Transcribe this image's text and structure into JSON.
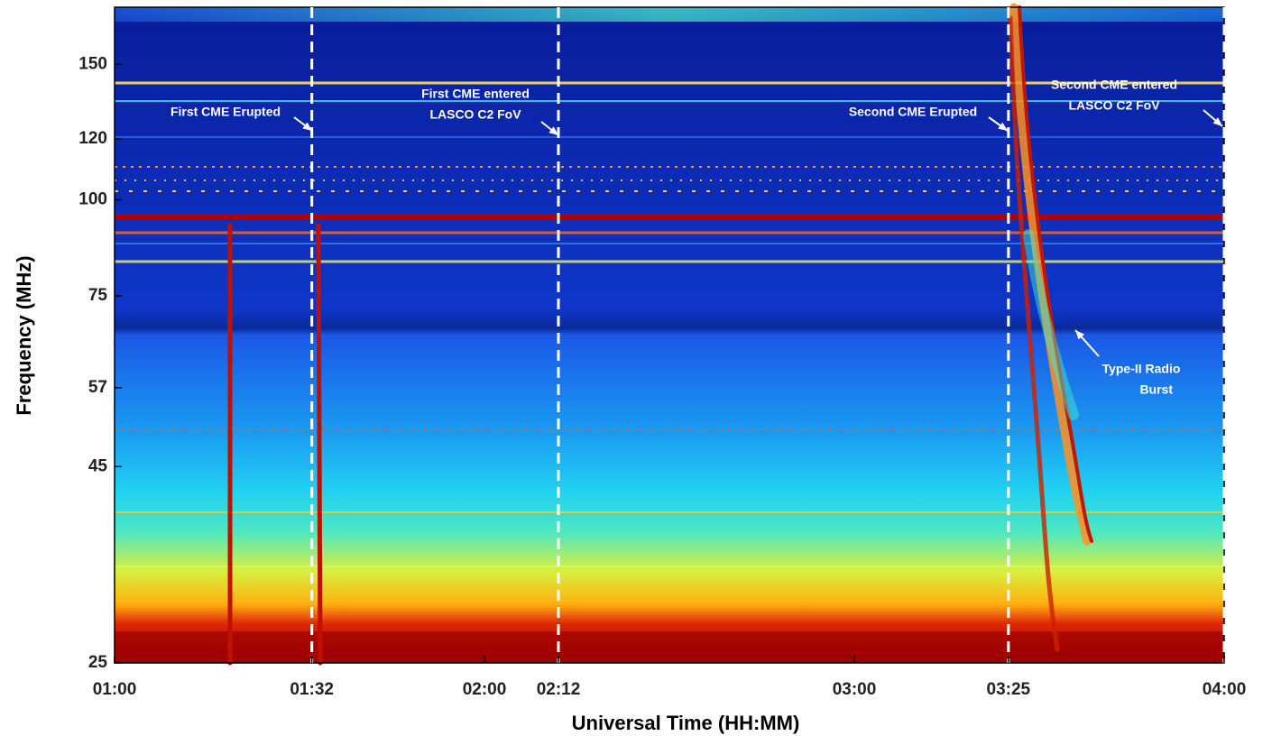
{
  "chart_data": {
    "type": "spectrogram",
    "xlabel": "Universal Time (HH:MM)",
    "ylabel": "Frequency (MHz)",
    "xlim": [
      60,
      240
    ],
    "xticks": [
      {
        "value": 60,
        "label": "01:00"
      },
      {
        "value": 92,
        "label": "01:32"
      },
      {
        "value": 120,
        "label": "02:00"
      },
      {
        "value": 132,
        "label": "02:12"
      },
      {
        "value": 180,
        "label": "03:00"
      },
      {
        "value": 205,
        "label": "03:25"
      },
      {
        "value": 240,
        "label": "04:00"
      }
    ],
    "ylim": [
      25,
      178
    ],
    "yscale": "log",
    "yticks": [
      25,
      45,
      57,
      75,
      100,
      120,
      150
    ],
    "markers_x": [
      92,
      132,
      205,
      240
    ],
    "annotations": [
      {
        "lines": [
          "First CME Erupted"
        ]
      },
      {
        "lines": [
          "First CME entered",
          "LASCO C2 FoV"
        ]
      },
      {
        "lines": [
          "Second CME Erupted"
        ]
      },
      {
        "lines": [
          "Second CME entered",
          "LASCO C2 FoV"
        ]
      },
      {
        "lines": [
          "Type-II Radio",
          "Burst"
        ]
      }
    ]
  }
}
